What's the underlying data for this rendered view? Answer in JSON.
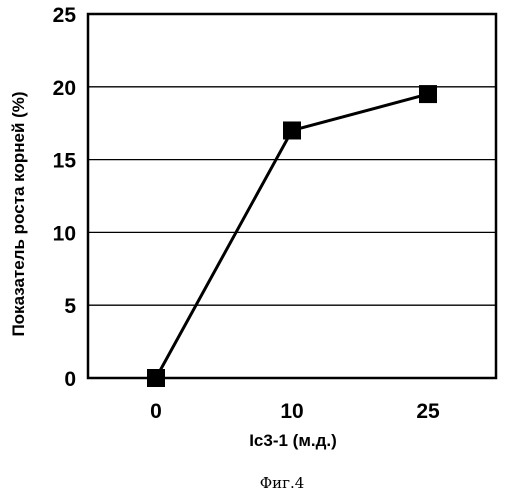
{
  "chart_data": {
    "type": "line",
    "categories": [
      "0",
      "10",
      "25"
    ],
    "values": [
      0,
      17,
      19.5
    ],
    "xlabel": "Ic3-1 (м.д.)",
    "ylabel": "Показатель роста корней (%)",
    "ylim": [
      0,
      25
    ],
    "yticks": [
      0,
      5,
      10,
      15,
      20,
      25
    ],
    "grid": true,
    "marker": "square",
    "line_color": "#000000",
    "marker_color": "#000000"
  },
  "caption": "Фиг.4"
}
